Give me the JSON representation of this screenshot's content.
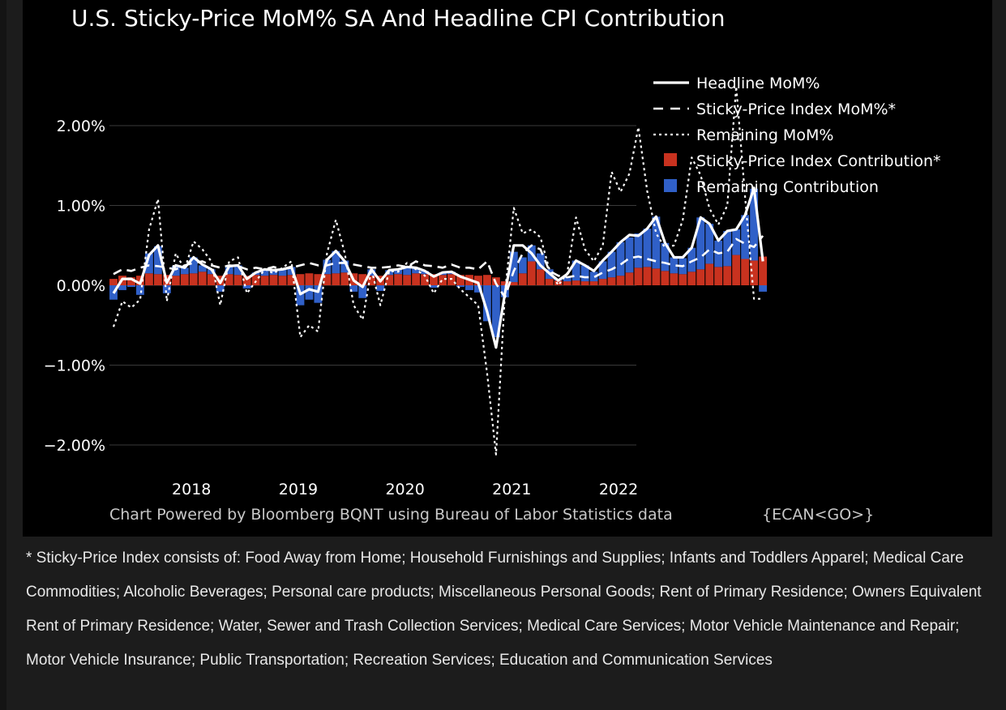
{
  "chart_data": {
    "type": "bar",
    "title": "U.S. Sticky-Price MoM% SA And Headline CPI Contribution",
    "xlabel": "",
    "ylabel": "",
    "ylim": [
      -2.4,
      2.6
    ],
    "yticks": [
      "2.00%",
      "1.00%",
      "0.00%",
      "−1.00%",
      "−2.00%"
    ],
    "ytick_values": [
      2,
      1,
      0,
      -1,
      -2
    ],
    "xticks": [
      "2018",
      "2019",
      "2020",
      "2021",
      "2022"
    ],
    "xtick_positions": [
      2018.0,
      2019.0,
      2020.0,
      2021.0,
      2022.0
    ],
    "x_start": 2017.33,
    "x_step": 0.08333,
    "grid": true,
    "legend_position": "top-right",
    "credit": "Chart Powered by Bloomberg BQNT using Bureau of Labor Statistics data",
    "credit_code": "{ECAN<GO>}",
    "colors": {
      "sticky_contribution": "#c8321f",
      "remaining_contribution": "#3060c8",
      "line": "#ffffff",
      "grid": "#3a3a3a"
    },
    "legend": [
      {
        "label": "Headline MoM%",
        "style": "solid"
      },
      {
        "label": "Sticky-Price Index MoM%*",
        "style": "dashed"
      },
      {
        "label": "Remaining MoM%",
        "style": "dotted"
      },
      {
        "label": "Sticky-Price Index Contribution*",
        "style": "swatch-red"
      },
      {
        "label": "Remaining Contribution",
        "style": "swatch-blue"
      }
    ],
    "series": [
      {
        "name": "Sticky-Price Index Contribution*",
        "kind": "bar",
        "values": [
          0.08,
          0.12,
          0.1,
          0.12,
          0.15,
          0.14,
          0.13,
          0.12,
          0.14,
          0.15,
          0.17,
          0.14,
          0.12,
          0.14,
          0.13,
          0.12,
          0.13,
          0.12,
          0.13,
          0.12,
          0.13,
          0.14,
          0.15,
          0.14,
          0.14,
          0.15,
          0.16,
          0.15,
          0.14,
          0.12,
          0.12,
          0.13,
          0.14,
          0.13,
          0.15,
          0.14,
          0.14,
          0.13,
          0.14,
          0.13,
          0.13,
          0.12,
          0.13,
          0.1,
          0.05,
          0.04,
          0.15,
          0.3,
          0.2,
          0.08,
          0.06,
          0.05,
          0.06,
          0.05,
          0.05,
          0.08,
          0.1,
          0.12,
          0.16,
          0.22,
          0.23,
          0.21,
          0.18,
          0.15,
          0.14,
          0.17,
          0.2,
          0.27,
          0.23,
          0.24,
          0.38,
          0.33,
          0.31,
          0.36
        ]
      },
      {
        "name": "Remaining Contribution",
        "kind": "bar",
        "values": [
          -0.18,
          -0.06,
          -0.02,
          -0.12,
          0.25,
          0.35,
          -0.1,
          0.12,
          0.08,
          0.2,
          0.08,
          0.06,
          -0.08,
          0.1,
          0.12,
          -0.04,
          0.03,
          0.08,
          0.06,
          0.08,
          0.1,
          -0.25,
          -0.18,
          -0.22,
          0.18,
          0.28,
          0.15,
          -0.08,
          -0.16,
          0.08,
          -0.07,
          0.06,
          0.06,
          0.1,
          0.07,
          0.04,
          -0.03,
          0.03,
          0.03,
          -0.02,
          -0.06,
          -0.09,
          -0.45,
          -0.65,
          -0.15,
          0.38,
          0.2,
          0.2,
          0.2,
          0.12,
          0.02,
          0.06,
          0.25,
          0.2,
          0.12,
          0.22,
          0.32,
          0.42,
          0.44,
          0.43,
          0.48,
          0.65,
          0.35,
          0.2,
          0.2,
          0.3,
          0.65,
          0.5,
          0.33,
          0.44,
          0.32,
          0.55,
          0.9,
          -0.08
        ]
      },
      {
        "name": "Headline MoM%",
        "kind": "line",
        "style": "solid",
        "values": [
          -0.1,
          0.08,
          0.08,
          0.02,
          0.38,
          0.5,
          0.03,
          0.25,
          0.22,
          0.35,
          0.26,
          0.2,
          0.03,
          0.24,
          0.25,
          0.08,
          0.16,
          0.2,
          0.19,
          0.2,
          0.23,
          -0.11,
          -0.05,
          -0.08,
          0.32,
          0.43,
          0.3,
          0.06,
          -0.02,
          0.2,
          0.05,
          0.19,
          0.2,
          0.23,
          0.22,
          0.18,
          0.11,
          0.16,
          0.17,
          0.11,
          0.07,
          0.03,
          -0.33,
          -0.78,
          -0.1,
          0.5,
          0.5,
          0.4,
          0.25,
          0.15,
          0.06,
          0.14,
          0.31,
          0.25,
          0.18,
          0.31,
          0.42,
          0.54,
          0.63,
          0.62,
          0.71,
          0.86,
          0.53,
          0.35,
          0.35,
          0.47,
          0.85,
          0.77,
          0.56,
          0.68,
          0.7,
          0.88,
          1.22,
          0.3
        ]
      },
      {
        "name": "Sticky-Price Index MoM%*",
        "kind": "line",
        "style": "dashed",
        "values": [
          0.14,
          0.2,
          0.18,
          0.22,
          0.25,
          0.24,
          0.22,
          0.2,
          0.25,
          0.28,
          0.3,
          0.25,
          0.22,
          0.25,
          0.24,
          0.2,
          0.22,
          0.2,
          0.23,
          0.2,
          0.22,
          0.25,
          0.28,
          0.25,
          0.25,
          0.28,
          0.28,
          0.26,
          0.24,
          0.22,
          0.22,
          0.23,
          0.25,
          0.23,
          0.3,
          0.25,
          0.24,
          0.22,
          0.26,
          0.22,
          0.22,
          0.2,
          0.3,
          0.02,
          -0.15,
          0.18,
          0.4,
          0.5,
          0.45,
          0.18,
          0.12,
          0.1,
          0.12,
          0.1,
          0.1,
          0.16,
          0.2,
          0.26,
          0.34,
          0.36,
          0.33,
          0.3,
          0.28,
          0.25,
          0.24,
          0.3,
          0.35,
          0.45,
          0.4,
          0.42,
          0.58,
          0.52,
          0.48,
          0.62
        ]
      },
      {
        "name": "Remaining MoM%",
        "kind": "line",
        "style": "dotted",
        "values": [
          -0.52,
          -0.2,
          -0.28,
          -0.18,
          0.7,
          1.08,
          -0.2,
          0.4,
          0.2,
          0.55,
          0.45,
          0.3,
          -0.25,
          0.3,
          0.35,
          -0.1,
          0.05,
          0.2,
          0.15,
          0.22,
          0.3,
          -0.65,
          -0.5,
          -0.58,
          0.4,
          0.82,
          0.4,
          -0.25,
          -0.43,
          0.2,
          -0.25,
          0.18,
          0.17,
          0.28,
          0.2,
          0.12,
          -0.1,
          0.08,
          0.08,
          -0.05,
          -0.15,
          -0.25,
          -1.1,
          -2.12,
          -0.1,
          0.97,
          0.65,
          0.7,
          0.6,
          0.2,
          0.0,
          0.15,
          0.85,
          0.45,
          0.3,
          0.5,
          1.42,
          1.17,
          1.4,
          1.98,
          1.18,
          0.65,
          0.47,
          0.5,
          0.82,
          1.6,
          1.38,
          0.96,
          0.76,
          1.0,
          2.49,
          1.1,
          -0.17,
          -0.17
        ]
      }
    ]
  },
  "footnote": "* Sticky-Price Index consists of: Food Away from Home; Household Furnishings and Supplies; Infants and Toddlers Apparel; Medical Care Commodities; Alcoholic Beverages; Personal care products; Miscellaneous Personal Goods; Rent of Primary Residence; Owners Equivalent Rent of Primary Residence; Water, Sewer and Trash Collection Services; Medical Care Services; Motor Vehicle Maintenance and Repair; Motor Vehicle Insurance; Public Transportation; Recreation Services; Education and Communication Services"
}
